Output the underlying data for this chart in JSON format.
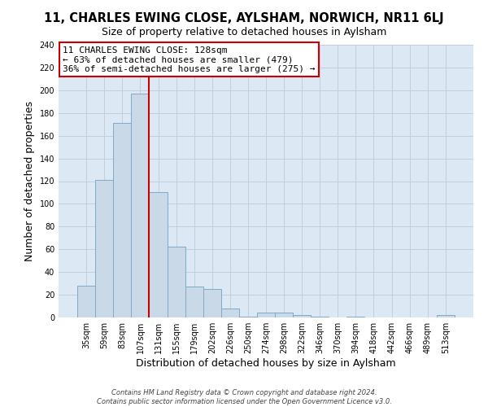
{
  "title": "11, CHARLES EWING CLOSE, AYLSHAM, NORWICH, NR11 6LJ",
  "subtitle": "Size of property relative to detached houses in Aylsham",
  "xlabel": "Distribution of detached houses by size in Aylsham",
  "ylabel": "Number of detached properties",
  "bar_labels": [
    "35sqm",
    "59sqm",
    "83sqm",
    "107sqm",
    "131sqm",
    "155sqm",
    "179sqm",
    "202sqm",
    "226sqm",
    "250sqm",
    "274sqm",
    "298sqm",
    "322sqm",
    "346sqm",
    "370sqm",
    "394sqm",
    "418sqm",
    "442sqm",
    "466sqm",
    "489sqm",
    "513sqm"
  ],
  "bar_values": [
    28,
    121,
    171,
    197,
    110,
    62,
    27,
    25,
    8,
    1,
    4,
    4,
    2,
    1,
    0,
    1,
    0,
    0,
    0,
    0,
    2
  ],
  "bar_color": "#c9d9e8",
  "bar_edge_color": "#7eaac8",
  "vline_color": "#cc0000",
  "annotation_text": "11 CHARLES EWING CLOSE: 128sqm\n← 63% of detached houses are smaller (479)\n36% of semi-detached houses are larger (275) →",
  "annotation_box_color": "#ffffff",
  "annotation_box_edge_color": "#cc0000",
  "ylim": [
    0,
    240
  ],
  "yticks": [
    0,
    20,
    40,
    60,
    80,
    100,
    120,
    140,
    160,
    180,
    200,
    220,
    240
  ],
  "grid_color": "#c0cfe0",
  "bg_color": "#dce9f5",
  "fig_bg_color": "#ffffff",
  "footer_line1": "Contains HM Land Registry data © Crown copyright and database right 2024.",
  "footer_line2": "Contains public sector information licensed under the Open Government Licence v3.0.",
  "title_fontsize": 10.5,
  "subtitle_fontsize": 9,
  "tick_fontsize": 7,
  "label_fontsize": 9,
  "annotation_fontsize": 8,
  "footer_fontsize": 6
}
